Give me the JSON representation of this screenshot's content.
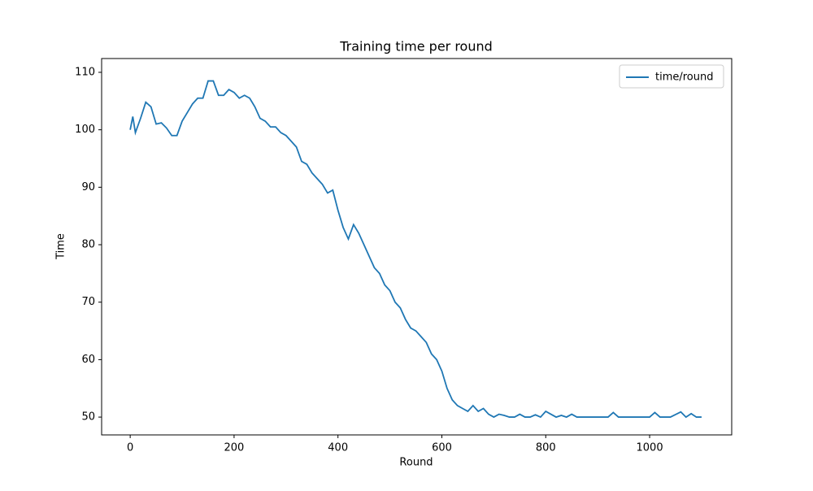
{
  "chart_data": {
    "type": "line",
    "title": "Training time per round",
    "x_label": "Round",
    "y_label": "Time",
    "x": [
      0,
      5,
      10,
      20,
      30,
      40,
      50,
      60,
      70,
      80,
      90,
      100,
      110,
      120,
      130,
      140,
      150,
      160,
      170,
      180,
      190,
      200,
      210,
      220,
      230,
      240,
      250,
      260,
      270,
      280,
      290,
      300,
      310,
      320,
      330,
      340,
      350,
      360,
      370,
      380,
      390,
      400,
      410,
      420,
      430,
      440,
      450,
      460,
      470,
      480,
      490,
      500,
      510,
      520,
      530,
      540,
      550,
      560,
      570,
      580,
      590,
      600,
      610,
      620,
      630,
      640,
      650,
      660,
      670,
      680,
      690,
      700,
      710,
      720,
      730,
      740,
      750,
      760,
      770,
      780,
      790,
      800,
      810,
      820,
      830,
      840,
      850,
      860,
      880,
      900,
      920,
      930,
      940,
      960,
      980,
      1000,
      1010,
      1020,
      1040,
      1060,
      1070,
      1080,
      1090,
      1100
    ],
    "series": [
      {
        "name": "time/round",
        "color": "#1f77b4",
        "values": [
          100,
          102.3,
          99.5,
          102,
          104.8,
          104,
          101,
          101.2,
          100.3,
          99,
          99,
          101.5,
          103,
          104.5,
          105.5,
          105.5,
          108.5,
          108.5,
          106,
          106,
          107,
          106.5,
          105.5,
          106,
          105.5,
          104,
          102,
          101.5,
          100.5,
          100.5,
          99.5,
          99,
          98,
          97,
          94.5,
          94,
          92.5,
          91.5,
          90.5,
          89,
          89.5,
          86,
          83,
          81,
          83.5,
          82,
          80,
          78,
          76,
          75,
          73,
          72,
          70,
          69,
          67,
          65.5,
          65,
          64,
          63,
          61,
          60,
          58,
          55,
          53,
          52,
          51.5,
          51,
          52,
          51,
          51.5,
          50.5,
          50,
          50.5,
          50.3,
          50,
          50,
          50.5,
          50,
          50,
          50.4,
          50,
          51,
          50.5,
          50,
          50.3,
          50,
          50.5,
          50,
          50,
          50,
          50,
          50.8,
          50,
          50,
          50,
          50,
          50.8,
          50,
          50,
          50.9,
          50,
          50.6,
          50,
          50
        ]
      }
    ],
    "xlim": [
      -55,
      1158
    ],
    "ylim": [
      46.9,
      112.4
    ],
    "xticks": [
      0,
      200,
      400,
      600,
      800,
      1000
    ],
    "yticks": [
      50,
      60,
      70,
      80,
      90,
      100,
      110
    ],
    "legend": "upper right"
  }
}
